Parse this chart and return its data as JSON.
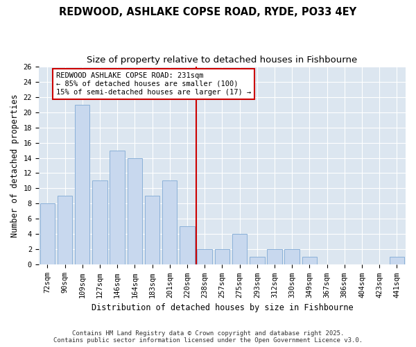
{
  "title": "REDWOOD, ASHLAKE COPSE ROAD, RYDE, PO33 4EY",
  "subtitle": "Size of property relative to detached houses in Fishbourne",
  "xlabel": "Distribution of detached houses by size in Fishbourne",
  "ylabel": "Number of detached properties",
  "categories": [
    "72sqm",
    "90sqm",
    "109sqm",
    "127sqm",
    "146sqm",
    "164sqm",
    "183sqm",
    "201sqm",
    "220sqm",
    "238sqm",
    "257sqm",
    "275sqm",
    "293sqm",
    "312sqm",
    "330sqm",
    "349sqm",
    "367sqm",
    "386sqm",
    "404sqm",
    "423sqm",
    "441sqm"
  ],
  "values": [
    8,
    9,
    21,
    11,
    15,
    14,
    9,
    11,
    5,
    2,
    2,
    4,
    1,
    2,
    2,
    1,
    0,
    0,
    0,
    0,
    1
  ],
  "bar_color": "#c8d8ee",
  "bar_edge_color": "#8ab0d8",
  "vline_x_index": 8.5,
  "vline_color": "#cc0000",
  "annotation_title": "REDWOOD ASHLAKE COPSE ROAD: 231sqm",
  "annotation_line1": "← 85% of detached houses are smaller (100)",
  "annotation_line2": "15% of semi-detached houses are larger (17) →",
  "annotation_box_color": "#ffffff",
  "annotation_box_edge": "#cc0000",
  "ylim": [
    0,
    26
  ],
  "yticks": [
    0,
    2,
    4,
    6,
    8,
    10,
    12,
    14,
    16,
    18,
    20,
    22,
    24,
    26
  ],
  "background_color": "#ffffff",
  "plot_background": "#dce6f0",
  "grid_color": "#ffffff",
  "footer_line1": "Contains HM Land Registry data © Crown copyright and database right 2025.",
  "footer_line2": "Contains public sector information licensed under the Open Government Licence v3.0.",
  "title_fontsize": 10.5,
  "subtitle_fontsize": 9.5,
  "axis_label_fontsize": 8.5,
  "tick_fontsize": 7.5,
  "annotation_fontsize": 7.5,
  "footer_fontsize": 6.5
}
